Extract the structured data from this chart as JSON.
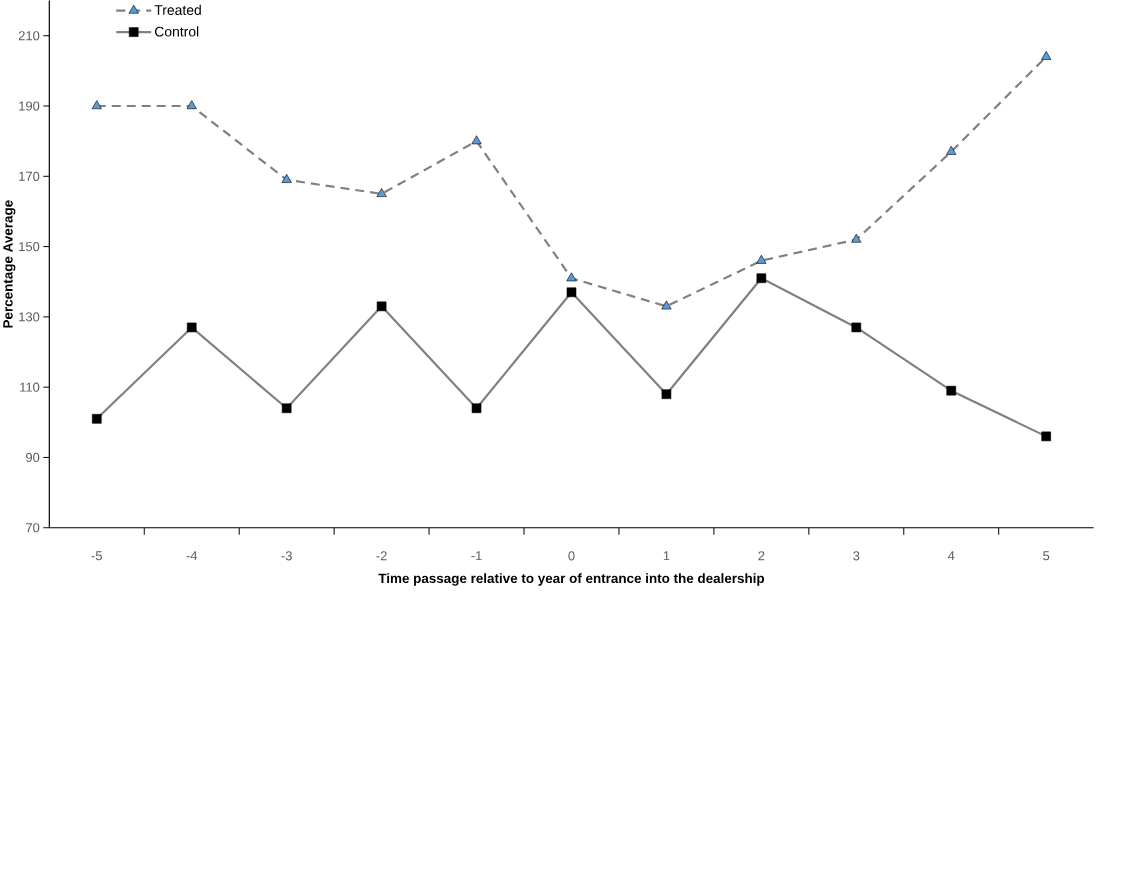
{
  "chart_data": {
    "type": "line",
    "xlabel": "Time passage relative to year of  entrance into the dealership",
    "ylabel": "Percentage Average",
    "categories": [
      "-5",
      "-4",
      "-3",
      "-2",
      "-1",
      "0",
      "1",
      "2",
      "3",
      "4",
      "5"
    ],
    "series": [
      {
        "name": "Treated",
        "color": "#5b9bd5",
        "marker": "triangle",
        "line_style": "dashed",
        "values": [
          190,
          190,
          169,
          165,
          180,
          141,
          133,
          146,
          152,
          177,
          204
        ]
      },
      {
        "name": "Control",
        "color": "#000000",
        "marker": "square",
        "line_style": "solid",
        "values": [
          101,
          127,
          104,
          133,
          104,
          137,
          108,
          141,
          127,
          109,
          96
        ]
      }
    ],
    "ylim": [
      70,
      220
    ],
    "yticks": [
      70,
      90,
      110,
      130,
      150,
      170,
      190,
      210
    ],
    "grid": false,
    "legend": "top left"
  }
}
